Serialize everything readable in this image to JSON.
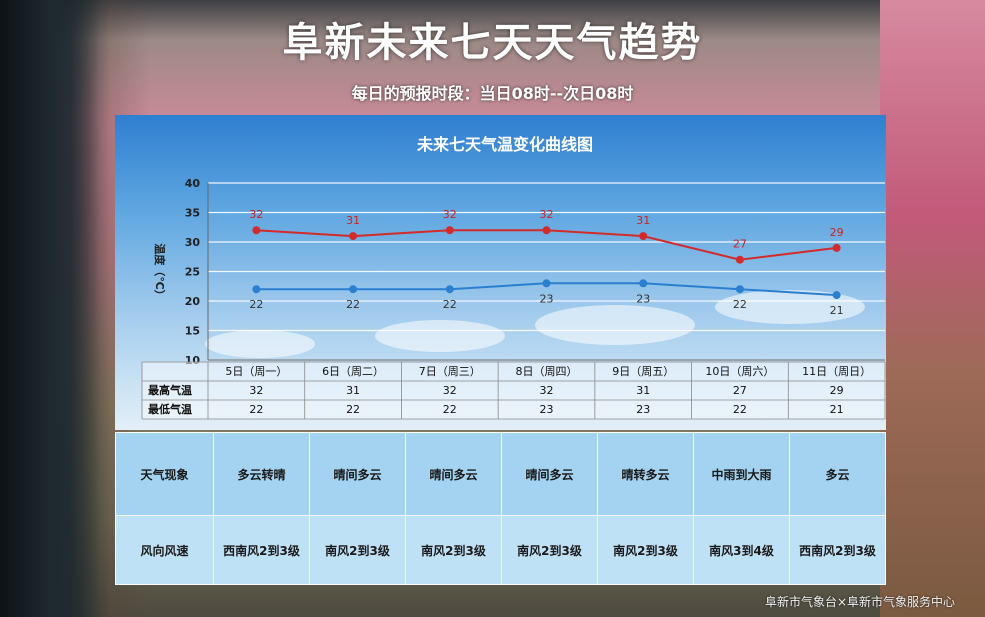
{
  "title": "阜新未来七天天气趋势",
  "subtitle": "每日的预报时段：当日08时--次日08时",
  "footer": "阜新市气象台×阜新市气象服务中心",
  "colors": {
    "high": "#d32a2a",
    "low": "#2a7fd0"
  },
  "chart_data": {
    "type": "line",
    "title": "未来七天气温变化曲线图",
    "ylabel": "温度（℃）",
    "ylim": [
      10,
      40
    ],
    "yticks": [
      10,
      15,
      20,
      25,
      30,
      35,
      40
    ],
    "categories": [
      "5日（周一）",
      "6日（周二）",
      "7日（周三）",
      "8日（周四）",
      "9日（周五）",
      "10日（周六）",
      "11日（周日）"
    ],
    "series": [
      {
        "name": "最高气温",
        "values": [
          32,
          31,
          32,
          32,
          31,
          27,
          29
        ]
      },
      {
        "name": "最低气温",
        "values": [
          22,
          22,
          22,
          23,
          23,
          22,
          21
        ]
      }
    ]
  },
  "weather_table": {
    "rows": [
      {
        "label": "天气现象",
        "values": [
          "多云转晴",
          "晴间多云",
          "晴间多云",
          "晴间多云",
          "晴转多云",
          "中雨到大雨",
          "多云"
        ]
      },
      {
        "label": "风向风速",
        "values": [
          "西南风2到3级",
          "南风2到3级",
          "南风2到3级",
          "南风2到3级",
          "南风2到3级",
          "南风3到4级",
          "西南风2到3级"
        ]
      }
    ]
  }
}
